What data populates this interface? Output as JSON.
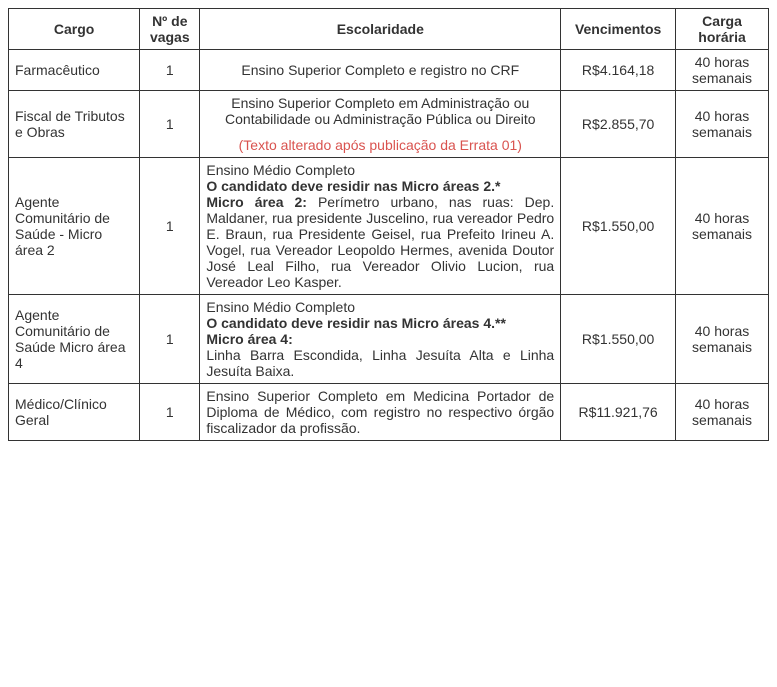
{
  "headers": {
    "cargo": "Cargo",
    "vagas": "Nº de vagas",
    "escolaridade": "Escolaridade",
    "vencimentos": "Vencimentos",
    "carga": "Carga horária"
  },
  "rows": [
    {
      "cargo": "Farmacêutico",
      "vagas": "1",
      "escolaridade_html": "<div class='esc-center'>Ensino Superior Completo e registro no CRF</div>",
      "vencimentos": "R$4.164,18",
      "carga": "40 horas semanais"
    },
    {
      "cargo": "Fiscal de Tributos e Obras",
      "vagas": "1",
      "escolaridade_html": "<div class='esc-center'>Ensino Superior Completo em Administração ou Contabilidade ou Administração Pública ou Direito<span class='errata'>(Texto alterado após publicação da Errata 01)</span></div>",
      "vencimentos": "R$2.855,70",
      "carga": "40 horas semanais"
    },
    {
      "cargo": "Agente Comunitário de Saúde - Micro área 2",
      "vagas": "1",
      "escolaridade_html": "<div class='esc-justify'>Ensino Médio Completo<br><span class='bold'>O candidato deve residir nas Micro áreas 2.*</span><br><span class='bold'>Micro área 2:</span> Perímetro urbano, nas ruas: Dep. Maldaner, rua presidente Juscelino, rua vereador Pedro E. Braun, rua Presidente Geisel, rua Prefeito Irineu A. Vogel, rua Vereador Leopoldo Hermes, avenida Doutor José Leal Filho, rua Vereador Olivio Lucion, rua Vereador Leo Kasper.</div>",
      "vencimentos": "R$1.550,00",
      "carga": "40 horas semanais"
    },
    {
      "cargo": "Agente Comunitário de Saúde Micro área 4",
      "vagas": "1",
      "escolaridade_html": "<div class='esc-justify'>Ensino Médio Completo<br><span class='bold'>O candidato deve residir nas Micro áreas 4.**</span><br><span class='bold'>Micro área 4:</span><br>Linha Barra Escondida, Linha Jesuíta Alta e Linha Jesuíta Baixa.</div>",
      "vencimentos": "R$1.550,00",
      "carga": "40 horas semanais"
    },
    {
      "cargo": "Médico/Clínico Geral",
      "vagas": "1",
      "escolaridade_html": "<div class='esc-justify'>Ensino Superior Completo em Medicina Portador de Diploma de Médico, com registro no respectivo órgão fiscalizador da profissão.</div>",
      "vencimentos": "R$11.921,76",
      "carga": "40 horas semanais"
    }
  ]
}
